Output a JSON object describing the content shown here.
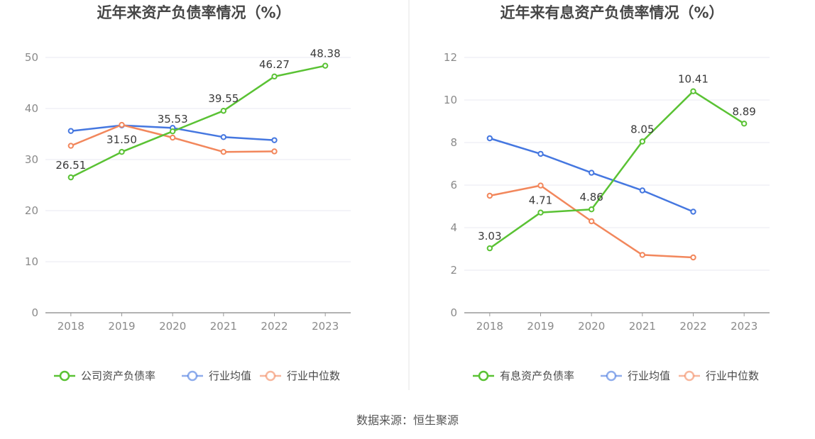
{
  "colors": {
    "company": "#5ac234",
    "industry_avg": "#4577e0",
    "industry_median": "#f2875c",
    "grid": "#e8eaf2",
    "axis": "#999999",
    "divider": "#e6e6e6"
  },
  "source": "数据来源：恒生聚源",
  "chart_data": [
    {
      "type": "line",
      "title": "近年来资产负债率情况（%）",
      "categories": [
        "2018",
        "2019",
        "2020",
        "2021",
        "2022",
        "2023"
      ],
      "ylim": [
        0,
        50
      ],
      "yticks": [
        0,
        10,
        20,
        30,
        40,
        50
      ],
      "grid": true,
      "legend_position": "bottom",
      "series": [
        {
          "name": "公司资产负债率",
          "color_key": "company",
          "values": [
            26.51,
            31.5,
            35.53,
            39.55,
            46.27,
            48.38
          ],
          "labels": [
            "26.51",
            "31.50",
            "35.53",
            "39.55",
            "46.27",
            "48.38"
          ]
        },
        {
          "name": "行业均值",
          "color_key": "industry_avg",
          "values": [
            35.6,
            36.7,
            36.2,
            34.4,
            33.8,
            null
          ]
        },
        {
          "name": "行业中位数",
          "color_key": "industry_median",
          "values": [
            32.7,
            36.8,
            34.3,
            31.5,
            31.6,
            null
          ]
        }
      ]
    },
    {
      "type": "line",
      "title": "近年来有息资产负债率情况（%）",
      "categories": [
        "2018",
        "2019",
        "2020",
        "2021",
        "2022",
        "2023"
      ],
      "ylim": [
        0,
        12
      ],
      "yticks": [
        0,
        2,
        4,
        6,
        8,
        10,
        12
      ],
      "grid": true,
      "legend_position": "bottom",
      "series": [
        {
          "name": "有息资产负债率",
          "color_key": "company",
          "values": [
            3.03,
            4.71,
            4.86,
            8.05,
            10.41,
            8.89
          ],
          "labels": [
            "3.03",
            "4.71",
            "4.86",
            "8.05",
            "10.41",
            "8.89"
          ]
        },
        {
          "name": "行业均值",
          "color_key": "industry_avg",
          "values": [
            8.2,
            7.47,
            6.58,
            5.75,
            4.75,
            null
          ]
        },
        {
          "name": "行业中位数",
          "color_key": "industry_median",
          "values": [
            5.5,
            5.98,
            4.3,
            2.72,
            2.6,
            null
          ]
        }
      ]
    }
  ]
}
